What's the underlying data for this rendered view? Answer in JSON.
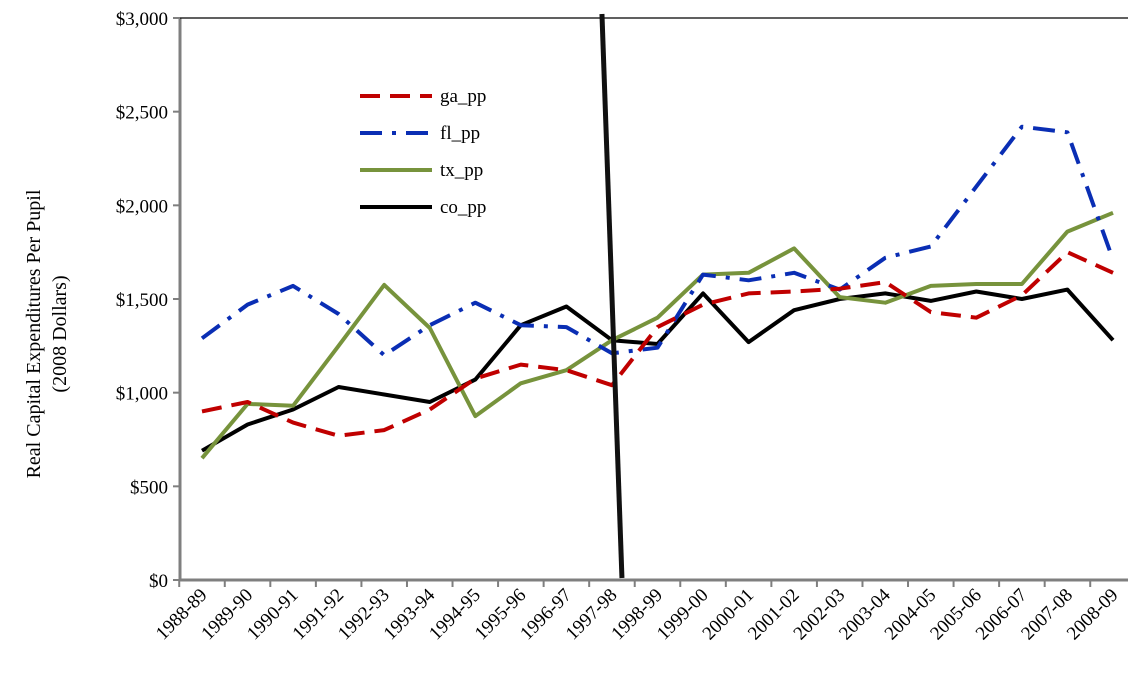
{
  "chart_data": {
    "type": "line",
    "title": "",
    "ylabel_line1": "Real Capital Expenditures Per Pupil",
    "ylabel_line2": "(2008 Dollars)",
    "xlabel": "",
    "ylim": [
      0,
      3000
    ],
    "yticks": [
      0,
      500,
      1000,
      1500,
      2000,
      2500,
      3000
    ],
    "ytick_labels": [
      "$0",
      "$500",
      "$1,000",
      "$1,500",
      "$2,000",
      "$2,500",
      "$3,000"
    ],
    "categories": [
      "1988-89",
      "1989-90",
      "1990-91",
      "1991-92",
      "1992-93",
      "1993-94",
      "1994-95",
      "1995-96",
      "1996-97",
      "1997-98",
      "1998-99",
      "1999-00",
      "2000-01",
      "2001-02",
      "2002-03",
      "2003-04",
      "2004-05",
      "2005-06",
      "2006-07",
      "2007-08",
      "2008-09"
    ],
    "grid": false,
    "legend_position": "top-left inside plot",
    "reference_line_at": "1997-98",
    "series": [
      {
        "name": "ga_pp",
        "color": "#c00000",
        "dash": "dashed",
        "values": [
          900,
          950,
          840,
          770,
          800,
          910,
          1075,
          1150,
          1120,
          1040,
          1350,
          1470,
          1530,
          1540,
          1555,
          1590,
          1430,
          1400,
          1520,
          1750,
          1640
        ]
      },
      {
        "name": "fl_pp",
        "color": "#0a2eb4",
        "dash": "dash-dot",
        "values": [
          1290,
          1470,
          1570,
          1420,
          1200,
          1360,
          1480,
          1360,
          1350,
          1210,
          1240,
          1630,
          1600,
          1640,
          1550,
          1720,
          1780,
          2100,
          2420,
          2390,
          1710
        ]
      },
      {
        "name": "tx_pp",
        "color": "#77933c",
        "dash": "solid",
        "values": [
          650,
          940,
          930,
          1250,
          1575,
          1345,
          875,
          1050,
          1120,
          1280,
          1400,
          1630,
          1640,
          1770,
          1510,
          1480,
          1570,
          1580,
          1580,
          1860,
          1960
        ]
      },
      {
        "name": "co_pp",
        "color": "#000000",
        "dash": "solid",
        "values": [
          690,
          830,
          910,
          1030,
          990,
          950,
          1070,
          1360,
          1460,
          1280,
          1260,
          1530,
          1270,
          1440,
          1500,
          1530,
          1490,
          1540,
          1500,
          1550,
          1280
        ]
      }
    ]
  }
}
